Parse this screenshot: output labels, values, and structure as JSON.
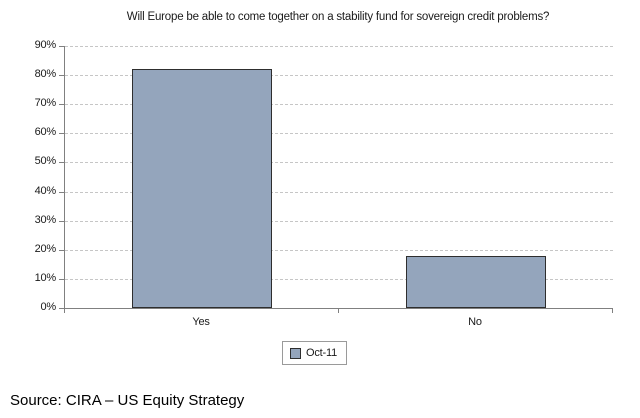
{
  "chart_data": {
    "type": "bar",
    "title": "Will Europe be able to come together on a stability fund for sovereign credit problems?",
    "categories": [
      "Yes",
      "No"
    ],
    "series": [
      {
        "name": "Oct-11",
        "values": [
          82,
          18
        ]
      }
    ],
    "xlabel": "",
    "ylabel": "",
    "ylim": [
      0,
      90
    ],
    "y_ticks": [
      "0%",
      "10%",
      "20%",
      "30%",
      "40%",
      "50%",
      "60%",
      "70%",
      "80%",
      "90%"
    ],
    "grid": "horizontal-dashed",
    "legend_position": "bottom-center",
    "bar_fill_color": "#94A5BC",
    "bar_border_color": "#2e2e2e",
    "axis_color": "#808080",
    "gridline_color": "#c6c6c6"
  },
  "legend": {
    "label": "Oct-11"
  },
  "source": {
    "text": "Source: CIRA – US Equity Strategy"
  }
}
